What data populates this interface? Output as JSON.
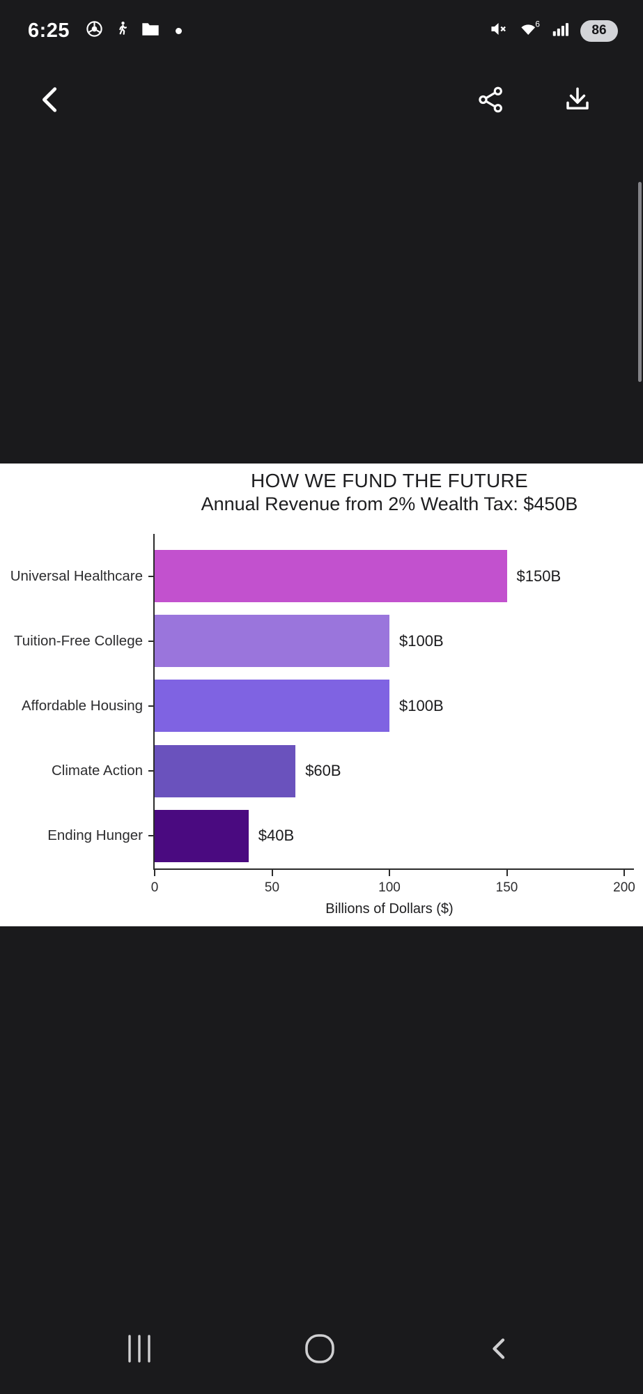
{
  "status_bar": {
    "time": "6:25",
    "battery_percent": "86",
    "left_icons": [
      "chrome-icon",
      "walking-person-icon",
      "folder-icon",
      "notification-dot"
    ],
    "right_icons": [
      "mute-icon",
      "wifi6-icon",
      "signal-icon",
      "battery-pill"
    ],
    "wifi_generation": "6"
  },
  "app_bar": {
    "icons": [
      "back-icon",
      "share-icon",
      "download-icon"
    ]
  },
  "chart_data": {
    "type": "bar",
    "orientation": "horizontal",
    "title": "HOW WE FUND THE FUTURE",
    "subtitle": "Annual Revenue from 2% Wealth Tax: $450B",
    "categories": [
      "Universal Healthcare",
      "Tuition-Free College",
      "Affordable Housing",
      "Climate Action",
      "Ending Hunger"
    ],
    "values": [
      150,
      100,
      100,
      60,
      40
    ],
    "value_labels": [
      "$150B",
      "$100B",
      "$100B",
      "$60B",
      "$40B"
    ],
    "bar_colors": [
      "#c251ce",
      "#9a75dc",
      "#7f63e2",
      "#6a52bd",
      "#4a0a80"
    ],
    "xlabel": "Billions of Dollars ($)",
    "xticks": [
      "0",
      "50",
      "100",
      "150",
      "200"
    ],
    "xlim": [
      0,
      200
    ],
    "grid": false,
    "legend": "none"
  },
  "nav_bar": {
    "icons": [
      "recents-icon",
      "home-icon",
      "back-icon"
    ]
  },
  "colors": {
    "background": "#1a1a1c",
    "panel": "#ffffff",
    "axis": "#2b2b2b",
    "nav_icon": "#cfcfd1",
    "status_icon": "#ffffff"
  }
}
